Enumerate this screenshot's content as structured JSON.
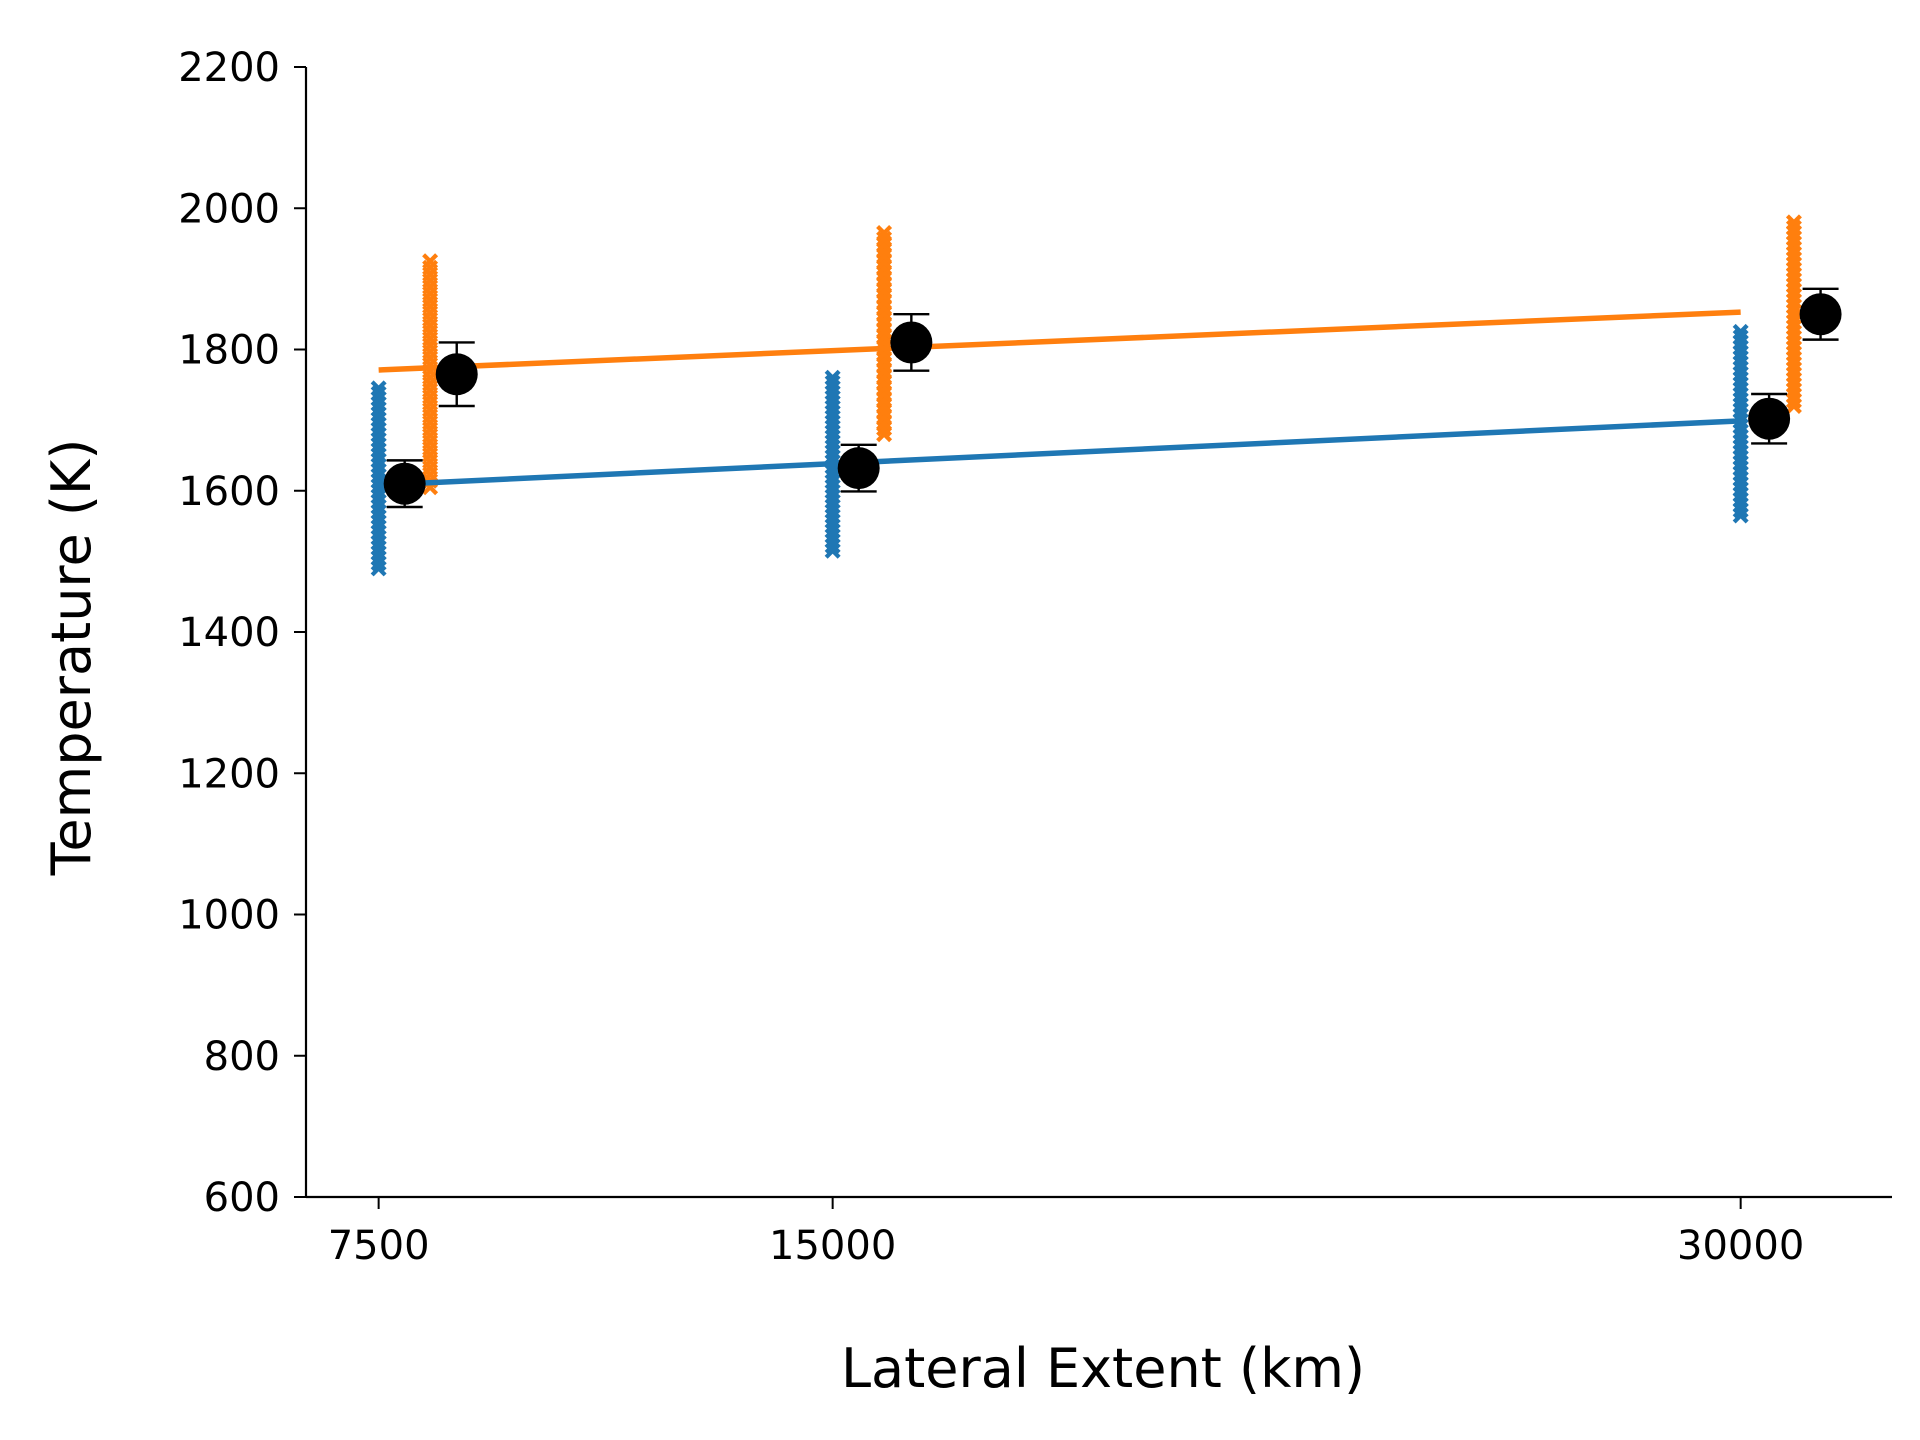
{
  "chart_data": {
    "type": "scatter",
    "xlabel": "Lateral Extent (km)",
    "ylabel": "Temperature (K)",
    "x_ticks": [
      7500,
      15000,
      30000
    ],
    "y_ticks": [
      600,
      800,
      1000,
      1200,
      1400,
      1600,
      1800,
      2000,
      2200
    ],
    "xlim": [
      6300,
      32500
    ],
    "ylim": [
      600,
      2200
    ],
    "grid": false,
    "spines": "left-bottom",
    "colors": {
      "series_a": "#1f77b4",
      "series_b": "#ff7f0e",
      "mean": "#000000"
    },
    "series": [
      {
        "color": "#1f77b4",
        "marker": "x",
        "trend_line": [
          [
            7500,
            1608
          ],
          [
            30000,
            1699
          ]
        ],
        "samples": [
          {
            "x": 7500,
            "ymin": 1490,
            "ymax": 1745
          },
          {
            "x": 15000,
            "ymin": 1515,
            "ymax": 1760
          },
          {
            "x": 30000,
            "ymin": 1565,
            "ymax": 1825
          }
        ],
        "means": [
          {
            "x": 7930,
            "y": 1610,
            "err": 33
          },
          {
            "x": 15430,
            "y": 1632,
            "err": 33
          },
          {
            "x": 30470,
            "y": 1702,
            "err": 35
          }
        ]
      },
      {
        "color": "#ff7f0e",
        "marker": "x",
        "trend_line": [
          [
            7500,
            1771
          ],
          [
            30000,
            1853
          ]
        ],
        "samples": [
          {
            "x": 8350,
            "ymin": 1605,
            "ymax": 1925
          },
          {
            "x": 15850,
            "ymin": 1680,
            "ymax": 1965
          },
          {
            "x": 30880,
            "ymin": 1720,
            "ymax": 1980
          }
        ],
        "means": [
          {
            "x": 8790,
            "y": 1765,
            "err": 45
          },
          {
            "x": 16300,
            "y": 1810,
            "err": 40
          },
          {
            "x": 31320,
            "y": 1850,
            "err": 36
          }
        ]
      }
    ]
  }
}
